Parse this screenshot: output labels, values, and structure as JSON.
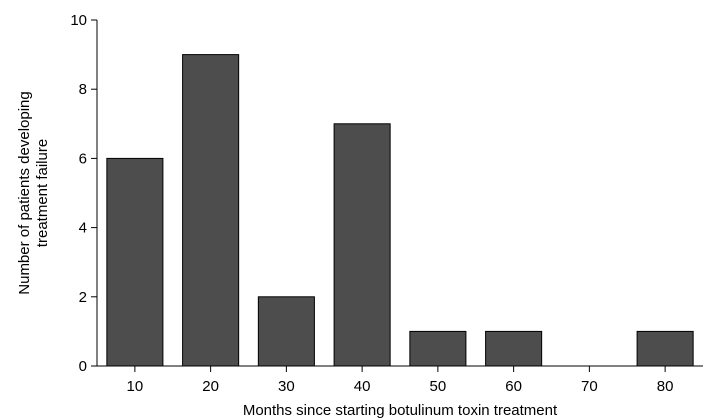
{
  "chart_data": {
    "type": "bar",
    "categories": [
      "10",
      "20",
      "30",
      "40",
      "50",
      "60",
      "70",
      "80"
    ],
    "values": [
      6,
      9,
      2,
      7,
      1,
      1,
      0,
      1
    ],
    "xlabel": "Months since starting botulinum toxin treatment",
    "ylabel_lines": [
      "Number of patients developing",
      "treatment failure"
    ],
    "ylim": [
      0,
      10
    ],
    "yticks": [
      "0",
      "2",
      "4",
      "6",
      "8",
      "10"
    ],
    "grid": false,
    "legend": "none",
    "colors": {
      "bar_fill": "#4d4d4d",
      "bar_stroke": "#000000",
      "axis": "#000000"
    }
  }
}
